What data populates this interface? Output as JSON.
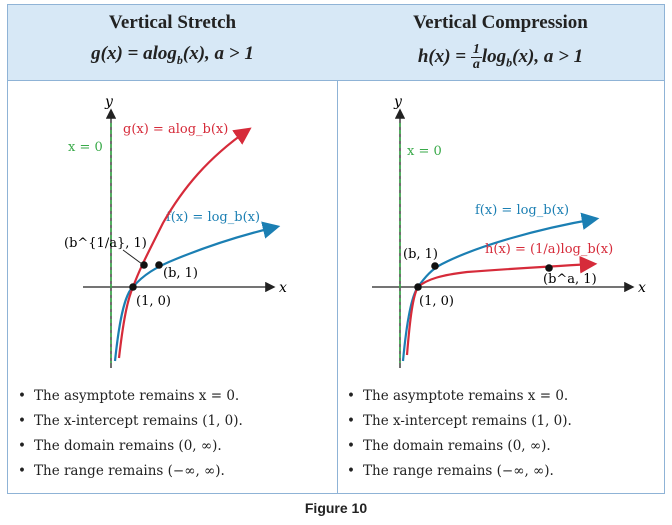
{
  "figure_caption": "Figure 10",
  "left": {
    "title": "Vertical Stretch",
    "subtitle": "g(x) = alog_b(x), a > 1",
    "labels": {
      "y_axis": "y",
      "x_axis": "x",
      "asymptote": "x = 0",
      "g_curve": "g(x) = alog_b(x)",
      "f_curve": "f(x) = log_b(x)",
      "point_b1a": "(b^{1/a}, 1)",
      "point_b1": "(b, 1)",
      "point_10": "(1, 0)"
    },
    "bullets": [
      "The asymptote remains x = 0.",
      "The x-intercept remains (1, 0).",
      "The domain remains (0, ∞).",
      "The range remains (−∞, ∞)."
    ]
  },
  "right": {
    "title": "Vertical Compression",
    "subtitle": "h(x) = (1/a)log_b(x), a > 1",
    "labels": {
      "y_axis": "y",
      "x_axis": "x",
      "asymptote": "x = 0",
      "f_curve": "f(x) = log_b(x)",
      "h_curve": "h(x) = (1/a)log_b(x)",
      "point_b1": "(b, 1)",
      "point_ba1": "(b^a, 1)",
      "point_10": "(1, 0)"
    },
    "bullets": [
      "The asymptote remains x = 0.",
      "The x-intercept remains (1, 0).",
      "The domain remains (0, ∞).",
      "The range remains (−∞, ∞)."
    ]
  },
  "colors": {
    "header_bg": "#d7e8f6",
    "border": "#8fb3d6",
    "f_curve": "#1b7fb3",
    "stretched_curve": "#d62b3a",
    "asymptote": "#3aaa4a"
  },
  "icons": {
    "bullet": "bullet-dot"
  }
}
